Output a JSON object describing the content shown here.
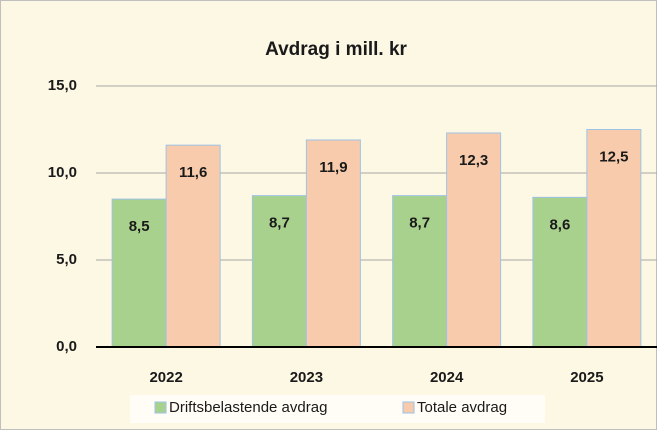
{
  "chart_data": {
    "type": "bar",
    "title": "Avdrag i mill. kr",
    "categories": [
      "2022",
      "2023",
      "2024",
      "2025"
    ],
    "series": [
      {
        "name": "Driftsbelastende avdrag",
        "color": "#a9d18e",
        "values": [
          8.5,
          8.7,
          8.7,
          8.6
        ],
        "value_labels": [
          "8,5",
          "8,7",
          "8,7",
          "8,6"
        ]
      },
      {
        "name": "Totale avdrag",
        "color": "#f8cbad",
        "values": [
          11.6,
          11.9,
          12.3,
          12.5
        ],
        "value_labels": [
          "11,6",
          "11,9",
          "12,3",
          "12,5"
        ]
      }
    ],
    "ylim": [
      0,
      15
    ],
    "yticks": [
      {
        "value": 0,
        "label": "0,0"
      },
      {
        "value": 5,
        "label": "5,0"
      },
      {
        "value": 10,
        "label": "10,0"
      },
      {
        "value": 15,
        "label": "15,0"
      }
    ],
    "grid": true,
    "legend": "bottom"
  }
}
